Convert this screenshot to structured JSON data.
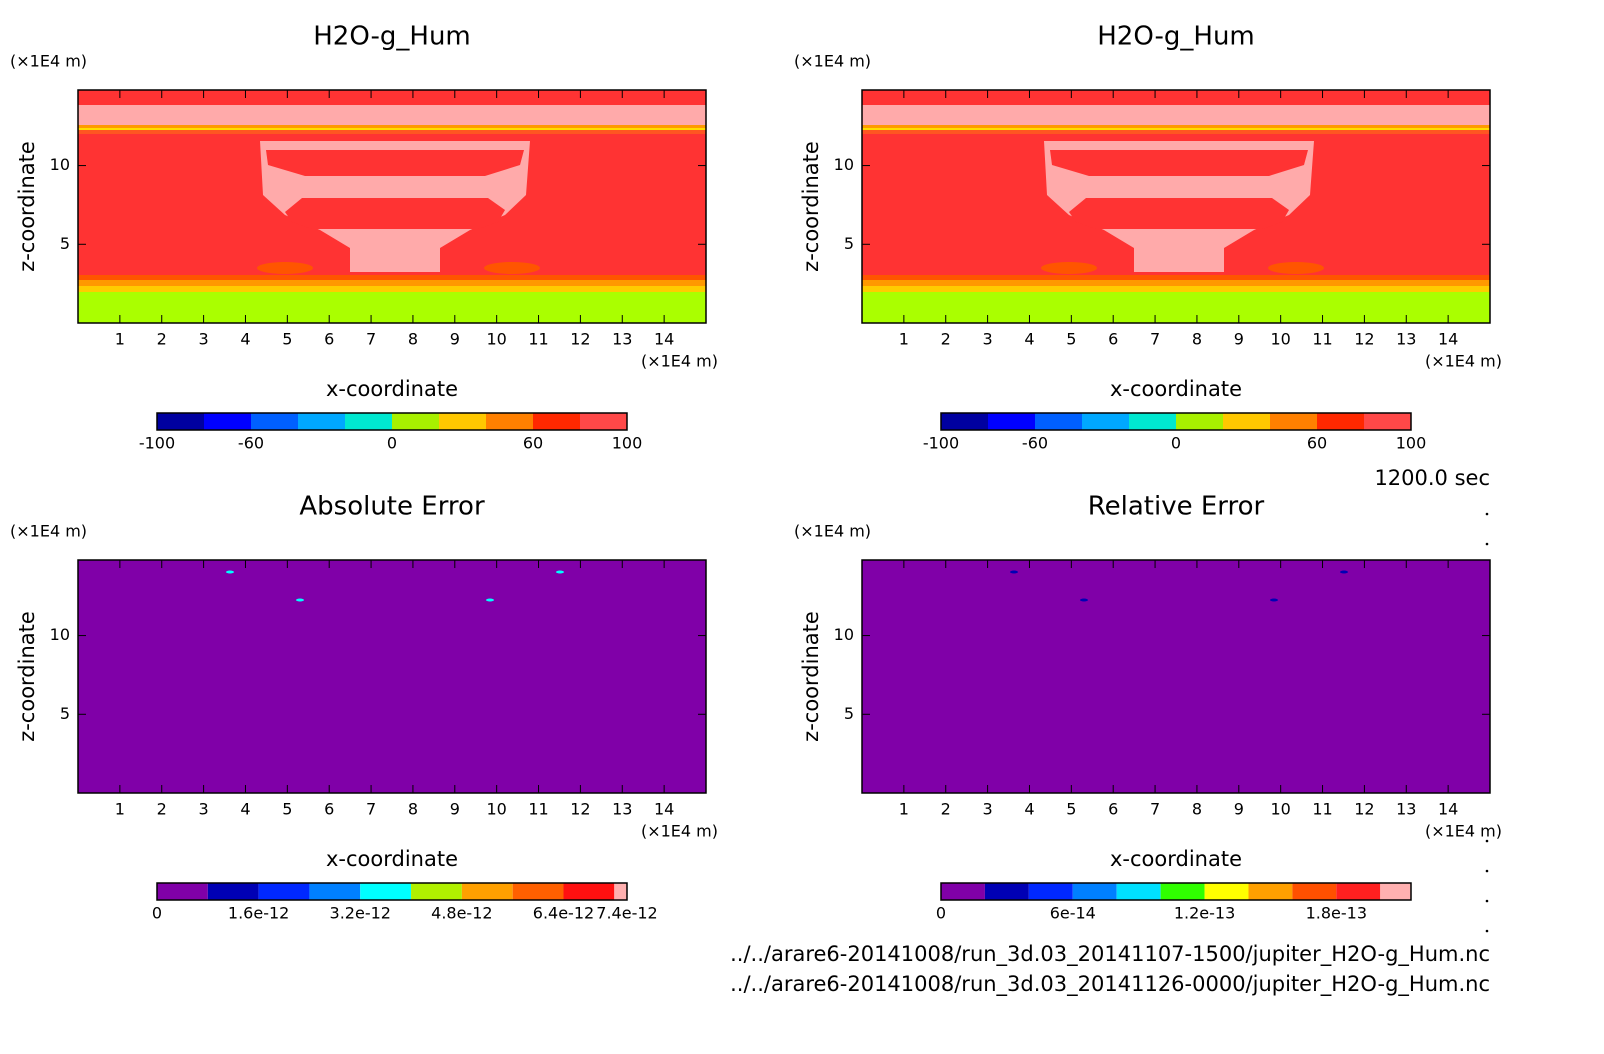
{
  "chart_data": [
    {
      "type": "contour",
      "title": "H2O-g_Hum",
      "xlabel": "x-coordinate",
      "ylabel": "z-coordinate",
      "xunit": "(×1E4 m)",
      "yunit": "(×1E4 m)",
      "xlim": [
        0,
        15
      ],
      "ylim": [
        0,
        14.8
      ],
      "xticks": [
        1,
        2,
        3,
        4,
        5,
        6,
        7,
        8,
        9,
        10,
        11,
        12,
        13,
        14
      ],
      "yticks": [
        5,
        10
      ],
      "levels": [
        -100,
        -80,
        -60,
        -40,
        -20,
        0,
        20,
        40,
        60,
        80,
        100
      ],
      "colors": [
        "#0000a0",
        "#0000ff",
        "#0060ff",
        "#00a8ff",
        "#00e8d0",
        "#a8f000",
        "#ffc800",
        "#ff8000",
        "#ff2800",
        "#ff4848"
      ],
      "clim": [
        -100,
        100
      ],
      "cticks": [
        -100,
        -60,
        0,
        60,
        100
      ]
    },
    {
      "type": "contour",
      "title": "H2O-g_Hum",
      "xlabel": "x-coordinate",
      "ylabel": "z-coordinate",
      "xunit": "(×1E4 m)",
      "yunit": "(×1E4 m)",
      "xlim": [
        0,
        15
      ],
      "ylim": [
        0,
        14.8
      ],
      "xticks": [
        1,
        2,
        3,
        4,
        5,
        6,
        7,
        8,
        9,
        10,
        11,
        12,
        13,
        14
      ],
      "yticks": [
        5,
        10
      ],
      "levels": [
        -100,
        -80,
        -60,
        -40,
        -20,
        0,
        20,
        40,
        60,
        80,
        100
      ],
      "colors": [
        "#0000a0",
        "#0000ff",
        "#0060ff",
        "#00a8ff",
        "#00e8d0",
        "#a8f000",
        "#ffc800",
        "#ff8000",
        "#ff2800",
        "#ff4848"
      ],
      "clim": [
        -100,
        100
      ],
      "cticks": [
        -100,
        -60,
        0,
        60,
        100
      ]
    },
    {
      "type": "contour",
      "title": "Absolute Error",
      "xlabel": "x-coordinate",
      "ylabel": "z-coordinate",
      "xunit": "(×1E4 m)",
      "yunit": "(×1E4 m)",
      "xlim": [
        0,
        15
      ],
      "ylim": [
        0,
        14.8
      ],
      "xticks": [
        1,
        2,
        3,
        4,
        5,
        6,
        7,
        8,
        9,
        10,
        11,
        12,
        13,
        14
      ],
      "yticks": [
        5,
        10
      ],
      "levels": [
        0,
        8e-13,
        1.6e-12,
        2.4e-12,
        3.2e-12,
        4e-12,
        4.8e-12,
        5.6e-12,
        6.4e-12,
        7.2e-12,
        7.4e-12
      ],
      "colors": [
        "#8000a8",
        "#0000b4",
        "#0028ff",
        "#0080ff",
        "#00ffff",
        "#b0f000",
        "#ffa000",
        "#ff6000",
        "#ff1010",
        "#ffb0b0"
      ],
      "clim": [
        0,
        7.4e-12
      ],
      "cticks": [
        0,
        1.6e-12,
        3.2e-12,
        4.8e-12,
        6.4e-12,
        7.4e-12
      ]
    },
    {
      "type": "contour",
      "title": "Relative Error",
      "xlabel": "x-coordinate",
      "ylabel": "z-coordinate",
      "xunit": "(×1E4 m)",
      "yunit": "(×1E4 m)",
      "xlim": [
        0,
        15
      ],
      "ylim": [
        0,
        14.8
      ],
      "xticks": [
        1,
        2,
        3,
        4,
        5,
        6,
        7,
        8,
        9,
        10,
        11,
        12,
        13,
        14
      ],
      "yticks": [
        5,
        10
      ],
      "levels": [
        0,
        2e-14,
        4e-14,
        6e-14,
        8e-14,
        1e-13,
        1.2e-13,
        1.4e-13,
        1.6e-13,
        1.8e-13,
        2e-13,
        2.14e-13
      ],
      "colors": [
        "#8000a8",
        "#0000b4",
        "#0028ff",
        "#0080ff",
        "#00e0ff",
        "#30ff00",
        "#ffff00",
        "#ffa000",
        "#ff5000",
        "#ff2020",
        "#ffb0b0"
      ],
      "clim": [
        0,
        2.14e-13
      ],
      "cticks": [
        0,
        6e-14,
        1.2e-13,
        1.8e-13
      ]
    }
  ],
  "annotations": {
    "time": "1200.0 sec",
    "files": [
      "../../arare6-20141008/run_3d.03_20141107-1500/jupiter_H2O-g_Hum.nc",
      "../../arare6-20141008/run_3d.03_20141126-0000/jupiter_H2O-g_Hum.nc"
    ]
  }
}
